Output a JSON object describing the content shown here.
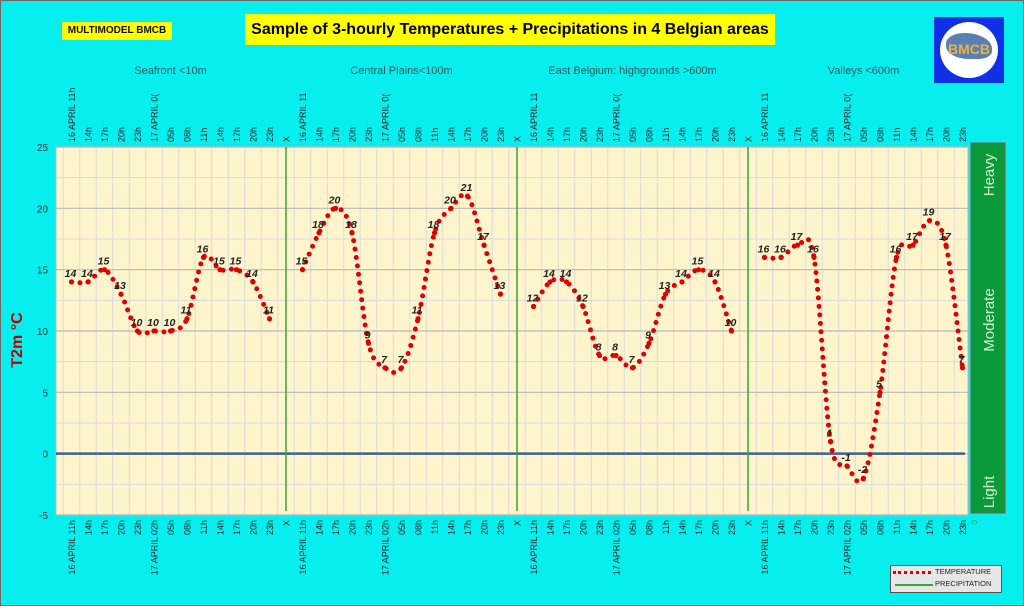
{
  "header": {
    "tag": "MULTIMODEL BMCB",
    "title": "Sample of 3-hourly Temperatures + Precipitations in 4 Belgian areas",
    "logo_text": "BMCB"
  },
  "legend": {
    "temperature": "TEMPERATURE",
    "precipitation": "PRECIPITATION"
  },
  "precip_scale": {
    "labels": [
      "Heavy",
      "Moderate",
      "Light"
    ],
    "zero": "0"
  },
  "colors": {
    "background": "#07eeee",
    "plot": "#fff5cc",
    "temperature": "#e00000",
    "precipitation": "#3aa040",
    "zero_line": "#3f5f8f",
    "scale": "#0a9a3a"
  },
  "chart_data": {
    "type": "line",
    "title": "Sample of 3-hourly Temperatures + Precipitations in 4 Belgian areas",
    "ylabel": "T2m °C",
    "ylim": [
      -5,
      25
    ],
    "yticks": [
      -5,
      0,
      5,
      10,
      15,
      20,
      25
    ],
    "grid": true,
    "legend_position": "bottom-right",
    "separator_label": "X",
    "bottom_labels": [
      "16 APRIL 11h",
      "14h",
      "17h",
      "20h",
      "23h",
      "17 APRIL 02h",
      "05h",
      "08h",
      "11h",
      "14h",
      "17h",
      "20h",
      "23h"
    ],
    "top_labels_first": [
      "16 APRIL 11h",
      "14h",
      "17h",
      "20h",
      "23h",
      "17 APRIL 0(",
      "05h",
      "08h",
      "11h",
      "14h",
      "17h",
      "20h",
      "23h"
    ],
    "top_labels_other": [
      "16 APRIL 11",
      "14h",
      "17h",
      "20h",
      "23h",
      "17 APRIL 0(",
      "05h",
      "08h",
      "11h",
      "14h",
      "17h",
      "20h",
      "23h"
    ],
    "series": [
      {
        "name": "Seafront <10m",
        "values": [
          14,
          14,
          15,
          13,
          10,
          10,
          10,
          11,
          16,
          15,
          15,
          14,
          11
        ]
      },
      {
        "name": "Central Plains<100m",
        "values": [
          15,
          18,
          20,
          18,
          9,
          7,
          7,
          11,
          18,
          20,
          21,
          17,
          13
        ]
      },
      {
        "name": "East Belgium:     highgrounds >600m",
        "values": [
          12,
          14,
          14,
          12,
          8,
          8,
          7,
          9,
          13,
          14,
          15,
          14,
          10
        ]
      },
      {
        "name": "Valleys <600m",
        "values": [
          16,
          16,
          17,
          16,
          1,
          -1,
          -2,
          5,
          16,
          17,
          19,
          17,
          7
        ]
      }
    ]
  }
}
